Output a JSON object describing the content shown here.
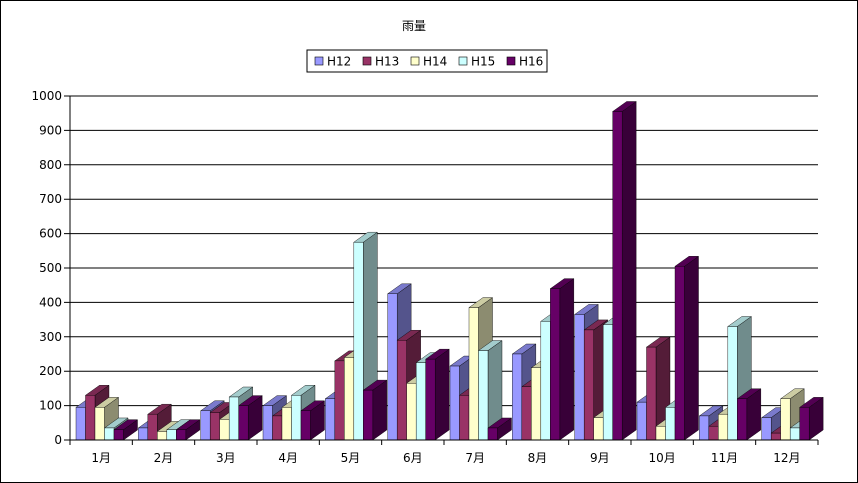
{
  "chart_data": {
    "type": "bar",
    "title": "雨量",
    "xlabel": "",
    "ylabel": "",
    "ylim": [
      0,
      1000
    ],
    "yticks": [
      0,
      100,
      200,
      300,
      400,
      500,
      600,
      700,
      800,
      900,
      1000
    ],
    "grid": true,
    "legend_position": "top",
    "categories": [
      "1月",
      "2月",
      "3月",
      "4月",
      "5月",
      "6月",
      "7月",
      "8月",
      "9月",
      "10月",
      "11月",
      "12月"
    ],
    "series": [
      {
        "name": "H12",
        "color": "#9999ff",
        "values": [
          95,
          35,
          85,
          100,
          120,
          425,
          215,
          250,
          365,
          110,
          70,
          65
        ]
      },
      {
        "name": "H13",
        "color": "#993366",
        "values": [
          130,
          75,
          80,
          70,
          230,
          290,
          130,
          155,
          320,
          270,
          40,
          20
        ]
      },
      {
        "name": "H14",
        "color": "#ffffcc",
        "values": [
          95,
          25,
          60,
          95,
          240,
          165,
          385,
          210,
          65,
          40,
          75,
          120
        ]
      },
      {
        "name": "H15",
        "color": "#ccffff",
        "values": [
          35,
          30,
          125,
          130,
          575,
          225,
          260,
          345,
          335,
          95,
          330,
          35
        ]
      },
      {
        "name": "H16",
        "color": "#660066",
        "values": [
          30,
          30,
          100,
          85,
          145,
          235,
          35,
          440,
          955,
          505,
          120,
          95
        ]
      }
    ]
  }
}
